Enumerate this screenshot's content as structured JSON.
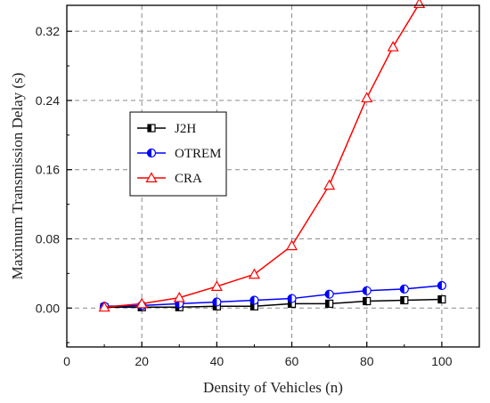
{
  "chart_data": {
    "type": "line",
    "xlabel": "Density of Vehicles (n)",
    "ylabel": "Maximum Transmission Delay (s)",
    "xlim": [
      0,
      110
    ],
    "ylim": [
      -0.045,
      0.35
    ],
    "xticks": [
      0,
      20,
      40,
      60,
      80,
      100
    ],
    "yticks": [
      0.0,
      0.08,
      0.16,
      0.24,
      0.32
    ],
    "xtick_labels": [
      "0",
      "20",
      "40",
      "60",
      "80",
      "100"
    ],
    "ytick_labels": [
      "0.00",
      "0.08",
      "0.16",
      "0.24",
      "0.32"
    ],
    "grid": "dashed vertical and horizontal at major ticks",
    "legend_position": "upper-left",
    "series": [
      {
        "name": "J2H",
        "color": "#000000",
        "marker": "half-filled-square",
        "points": [
          [
            10,
            0.001
          ],
          [
            20,
            0.001
          ],
          [
            30,
            0.001
          ],
          [
            40,
            0.002
          ],
          [
            50,
            0.002
          ],
          [
            60,
            0.005
          ],
          [
            70,
            0.005
          ],
          [
            80,
            0.008
          ],
          [
            90,
            0.009
          ],
          [
            100,
            0.01
          ]
        ]
      },
      {
        "name": "OTREM",
        "color": "#0000ff",
        "marker": "half-filled-circle",
        "points": [
          [
            10,
            0.002
          ],
          [
            20,
            0.003
          ],
          [
            30,
            0.005
          ],
          [
            40,
            0.007
          ],
          [
            50,
            0.009
          ],
          [
            60,
            0.011
          ],
          [
            70,
            0.016
          ],
          [
            80,
            0.02
          ],
          [
            90,
            0.022
          ],
          [
            100,
            0.026
          ]
        ]
      },
      {
        "name": "CRA",
        "color": "#ff0000",
        "marker": "open-triangle",
        "points": [
          [
            10,
            0.001
          ],
          [
            20,
            0.005
          ],
          [
            30,
            0.012
          ],
          [
            40,
            0.025
          ],
          [
            50,
            0.039
          ],
          [
            60,
            0.072
          ],
          [
            70,
            0.142
          ],
          [
            80,
            0.243
          ],
          [
            87,
            0.302
          ],
          [
            94,
            0.352
          ]
        ]
      }
    ]
  }
}
